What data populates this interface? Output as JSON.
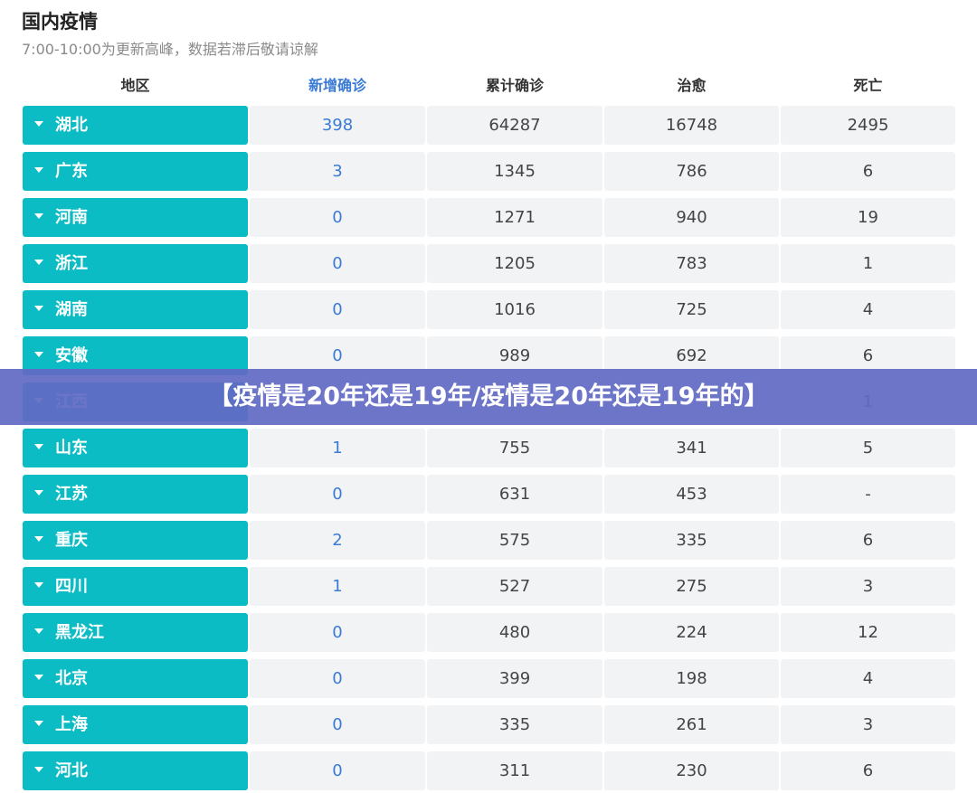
{
  "header": {
    "title": "国内疫情",
    "subtitle": "7:00-10:00为更新高峰，数据若滞后敬请谅解"
  },
  "columns": {
    "region": "地区",
    "new_confirmed": "新增确诊",
    "confirmed": "累计确诊",
    "cured": "治愈",
    "dead": "死亡"
  },
  "accent_colors": {
    "region_cell": "#0cbcc4",
    "new_confirmed_text": "#3a7bd5",
    "banner": "#626ac4"
  },
  "icons": {
    "expand": "caret-down-icon"
  },
  "rows": [
    {
      "region": "湖北",
      "new": "398",
      "confirmed": "64287",
      "cured": "16748",
      "dead": "2495"
    },
    {
      "region": "广东",
      "new": "3",
      "confirmed": "1345",
      "cured": "786",
      "dead": "6"
    },
    {
      "region": "河南",
      "new": "0",
      "confirmed": "1271",
      "cured": "940",
      "dead": "19"
    },
    {
      "region": "浙江",
      "new": "0",
      "confirmed": "1205",
      "cured": "783",
      "dead": "1"
    },
    {
      "region": "湖南",
      "new": "0",
      "confirmed": "1016",
      "cured": "725",
      "dead": "4"
    },
    {
      "region": "安徽",
      "new": "0",
      "confirmed": "989",
      "cured": "692",
      "dead": "6"
    },
    {
      "region": "江西",
      "new": "",
      "confirmed": "",
      "cured": "",
      "dead": "1"
    },
    {
      "region": "山东",
      "new": "1",
      "confirmed": "755",
      "cured": "341",
      "dead": "5"
    },
    {
      "region": "江苏",
      "new": "0",
      "confirmed": "631",
      "cured": "453",
      "dead": "-"
    },
    {
      "region": "重庆",
      "new": "2",
      "confirmed": "575",
      "cured": "335",
      "dead": "6"
    },
    {
      "region": "四川",
      "new": "1",
      "confirmed": "527",
      "cured": "275",
      "dead": "3"
    },
    {
      "region": "黑龙江",
      "new": "0",
      "confirmed": "480",
      "cured": "224",
      "dead": "12"
    },
    {
      "region": "北京",
      "new": "0",
      "confirmed": "399",
      "cured": "198",
      "dead": "4"
    },
    {
      "region": "上海",
      "new": "0",
      "confirmed": "335",
      "cured": "261",
      "dead": "3"
    },
    {
      "region": "河北",
      "new": "0",
      "confirmed": "311",
      "cured": "230",
      "dead": "6"
    }
  ],
  "banner": {
    "text": "【疫情是20年还是19年/疫情是20年还是19年的】"
  }
}
